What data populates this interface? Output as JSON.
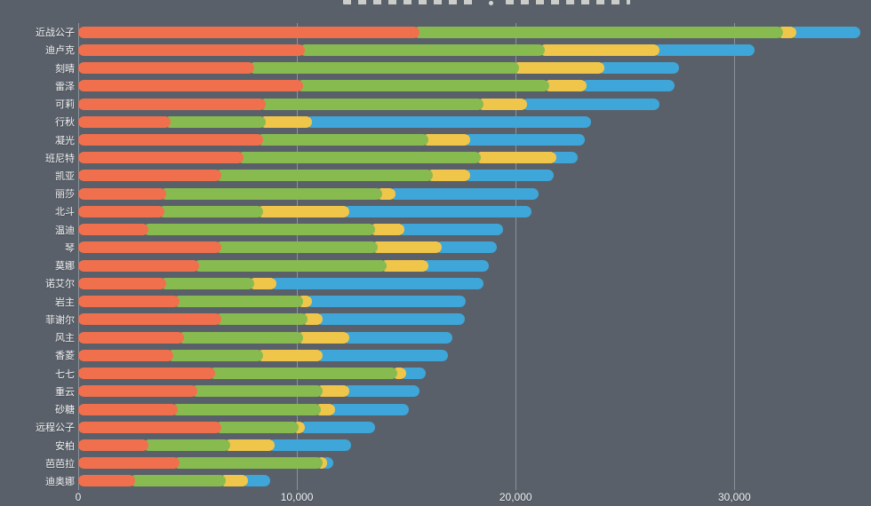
{
  "background_color": "#596069",
  "grid_color": "rgba(235,240,245,0.35)",
  "label_color": "#f1f2f4",
  "chart_data": {
    "type": "bar",
    "orientation": "horizontal",
    "stacked": true,
    "title": "",
    "legend": "none",
    "grid": true,
    "categories": [
      "近战公子",
      "迪卢克",
      "刻晴",
      "雷泽",
      "可莉",
      "行秋",
      "凝光",
      "班尼特",
      "凯亚",
      "丽莎",
      "北斗",
      "温迪",
      "琴",
      "莫娜",
      "诺艾尔",
      "岩主",
      "菲谢尔",
      "风主",
      "香菱",
      "七七",
      "重云",
      "砂糖",
      "远程公子",
      "安柏",
      "芭芭拉",
      "迪奥娜"
    ],
    "series": [
      {
        "name": "segment-orange",
        "color": "#f0704e",
        "values": [
          15500,
          10300,
          8000,
          10200,
          8500,
          4200,
          8400,
          7500,
          6500,
          4000,
          3900,
          3200,
          6500,
          5500,
          4000,
          4600,
          6500,
          4800,
          4300,
          6200,
          5400,
          4500,
          6500,
          3200,
          4600,
          2600
        ]
      },
      {
        "name": "segment-green",
        "color": "#88bb4f",
        "values": [
          16500,
          10900,
          12000,
          11200,
          9900,
          4300,
          7500,
          10800,
          9600,
          9800,
          4500,
          10300,
          7100,
          8500,
          4000,
          5600,
          3900,
          5400,
          4100,
          8300,
          5700,
          6500,
          3500,
          3700,
          6500,
          4100
        ]
      },
      {
        "name": "segment-yellow",
        "color": "#f0c64a",
        "values": [
          600,
          5200,
          3900,
          1700,
          2000,
          2100,
          1900,
          3400,
          1700,
          600,
          3900,
          1300,
          2900,
          1900,
          1000,
          400,
          700,
          2100,
          2700,
          400,
          1200,
          650,
          300,
          2000,
          200,
          1000
        ]
      },
      {
        "name": "segment-blue",
        "color": "#3ea6d8",
        "values": [
          2900,
          4300,
          3400,
          4000,
          6000,
          12700,
          5200,
          1000,
          3800,
          6500,
          8300,
          4500,
          2500,
          2750,
          9400,
          7000,
          6450,
          4700,
          5700,
          900,
          3200,
          3350,
          3200,
          3500,
          300,
          1000
        ]
      }
    ],
    "totals": [
      35500,
      30700,
      27300,
      27100,
      26400,
      23300,
      23000,
      22700,
      21600,
      20900,
      20600,
      19300,
      19000,
      18650,
      18400,
      17600,
      17550,
      17000,
      16800,
      15800,
      15500,
      15000,
      13500,
      12400,
      11600,
      8700
    ],
    "x_axis": {
      "min": 0,
      "max": 36000,
      "tick_values": [
        0,
        10000,
        20000,
        30000
      ],
      "tick_labels": [
        "0",
        "10,000",
        "20,000",
        "30,000"
      ]
    }
  }
}
